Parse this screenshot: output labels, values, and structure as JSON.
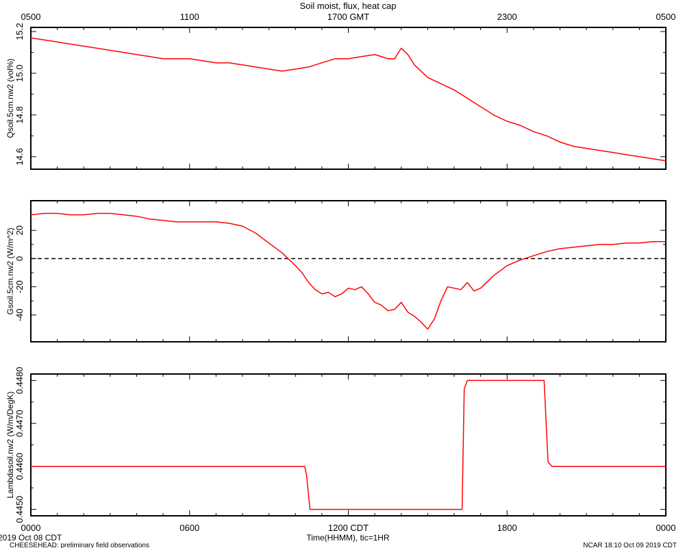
{
  "title": "Soil moist, flux, heat cap",
  "top_axis": {
    "ticks": [
      "0500",
      "1100",
      "1700 GMT",
      "2300",
      "0500"
    ]
  },
  "bottom_axis": {
    "ticks": [
      "0000",
      "0600",
      "1200 CDT",
      "1800",
      "0000"
    ],
    "label": "Time(HHMM), tic=1HR"
  },
  "footer": {
    "date": "2019 Oct 08 CDT",
    "project": "CHEESEHEAD: preliminary field observations",
    "stamp": "NCAR 18:10 Oct 09 2019 CDT"
  },
  "colors": {
    "series": "#ff0000",
    "axis": "#000000",
    "zero_line": "#000000"
  },
  "chart_data": [
    {
      "type": "line",
      "ylabel": "Qsoil.5cm.nw2 (vol%)",
      "xlim": [
        0,
        24
      ],
      "ylim": [
        14.54,
        15.22
      ],
      "yticks": [
        14.6,
        14.8,
        15.0,
        15.2
      ],
      "ytick_labels": [
        "14.6",
        "14.8",
        "15.0",
        "15.2"
      ],
      "x_hours": [
        0,
        0.5,
        1,
        1.5,
        2,
        2.5,
        3,
        3.5,
        4,
        4.5,
        5,
        5.5,
        6,
        6.5,
        7,
        7.5,
        8,
        8.5,
        9,
        9.5,
        10,
        10.5,
        11,
        11.5,
        12,
        12.5,
        13,
        13.25,
        13.5,
        13.75,
        14,
        14.25,
        14.5,
        15,
        15.5,
        16,
        16.5,
        17,
        17.5,
        18,
        18.5,
        19,
        19.5,
        20,
        20.5,
        21,
        21.5,
        22,
        22.5,
        23,
        23.5,
        24
      ],
      "values": [
        15.17,
        15.16,
        15.15,
        15.14,
        15.13,
        15.12,
        15.11,
        15.1,
        15.09,
        15.08,
        15.07,
        15.07,
        15.07,
        15.06,
        15.05,
        15.05,
        15.04,
        15.03,
        15.02,
        15.01,
        15.02,
        15.03,
        15.05,
        15.07,
        15.07,
        15.08,
        15.09,
        15.08,
        15.07,
        15.07,
        15.12,
        15.09,
        15.04,
        14.98,
        14.95,
        14.92,
        14.88,
        14.84,
        14.8,
        14.77,
        14.75,
        14.72,
        14.7,
        14.67,
        14.65,
        14.64,
        14.63,
        14.62,
        14.61,
        14.6,
        14.59,
        14.58
      ]
    },
    {
      "type": "line",
      "ylabel": "Gsoil.5cm.nw2 (W/m^2)",
      "xlim": [
        0,
        24
      ],
      "ylim": [
        -59,
        41
      ],
      "yticks": [
        -40,
        -20,
        0,
        20
      ],
      "ytick_labels": [
        "-40",
        "-20",
        "0",
        "20"
      ],
      "zero_line": true,
      "x_hours": [
        0,
        0.5,
        1,
        1.5,
        2,
        2.5,
        3,
        3.5,
        4,
        4.5,
        5,
        5.5,
        6,
        6.5,
        7,
        7.5,
        8,
        8.5,
        9,
        9.5,
        10,
        10.25,
        10.5,
        10.75,
        11,
        11.25,
        11.5,
        11.75,
        12,
        12.25,
        12.5,
        12.75,
        13,
        13.25,
        13.5,
        13.75,
        14,
        14.25,
        14.5,
        14.75,
        15,
        15.25,
        15.5,
        15.75,
        16,
        16.25,
        16.5,
        16.75,
        17,
        17.5,
        18,
        18.5,
        19,
        19.5,
        20,
        20.5,
        21,
        21.5,
        22,
        22.5,
        23,
        23.5,
        24
      ],
      "values": [
        31,
        32,
        32,
        31,
        31,
        32,
        32,
        31,
        30,
        28,
        27,
        26,
        26,
        26,
        26,
        25,
        23,
        18,
        11,
        4,
        -5,
        -10,
        -17,
        -22,
        -25,
        -24,
        -27,
        -25,
        -21,
        -22,
        -20,
        -25,
        -31,
        -33,
        -37,
        -36,
        -31,
        -38,
        -41,
        -45,
        -50,
        -43,
        -30,
        -20,
        -21,
        -22,
        -17,
        -23,
        -21,
        -12,
        -5,
        -1,
        2,
        5,
        7,
        8,
        9,
        10,
        10,
        11,
        11,
        12,
        12
      ]
    },
    {
      "type": "line",
      "ylabel": "Lambdasoil.nw2 (W/m/DegK)",
      "xlim": [
        0,
        24
      ],
      "ylim": [
        0.44485,
        0.44815
      ],
      "yticks": [
        0.445,
        0.446,
        0.447,
        0.448
      ],
      "ytick_labels": [
        "0.4450",
        "0.4460",
        "0.4470",
        "0.4480"
      ],
      "x_hours": [
        0,
        10.35,
        10.42,
        10.55,
        16.3,
        16.38,
        16.5,
        19.4,
        19.55,
        19.7,
        24
      ],
      "values": [
        0.446,
        0.446,
        0.4458,
        0.445,
        0.445,
        0.4478,
        0.448,
        0.448,
        0.4461,
        0.446,
        0.446
      ]
    }
  ]
}
